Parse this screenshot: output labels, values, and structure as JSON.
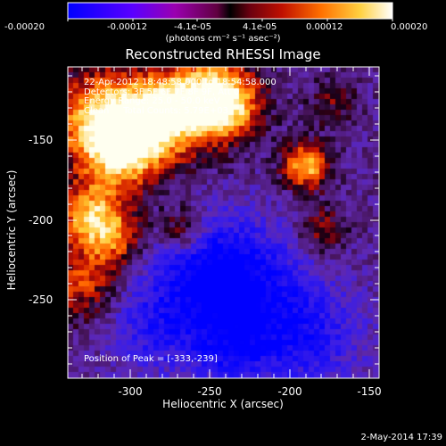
{
  "colorbar": {
    "ticks": [
      "-0.00020",
      "-0.00012",
      "-4.1e-05",
      "4.1e-05",
      "0.00012",
      "0.00020"
    ],
    "units": "(photons cm⁻² s⁻¹ asec⁻²)"
  },
  "plot": {
    "title": "Reconstructed RHESSI Image",
    "xlabel": "Heliocentric X (arcsec)",
    "ylabel": "Heliocentric Y (arcsec)",
    "xticks": [
      "-300",
      "-250",
      "-200",
      "-150"
    ],
    "yticks": [
      "-150",
      "-200",
      "-250"
    ]
  },
  "annotations": {
    "time_range": "22-Apr-2012 18:48:58.000 to 18:54:58.000",
    "detectors": "Detectors: 3F 5F 6F 7F 8F 9F, Att 0",
    "energy": "Energy Range: 25.0 - 50.0 keV",
    "clean": "Clean     Total Counts: 5.79E+03",
    "peak": "Position of Peak = [-333,-239]"
  },
  "footer": {
    "date": "2-May-2014 17:39"
  }
}
